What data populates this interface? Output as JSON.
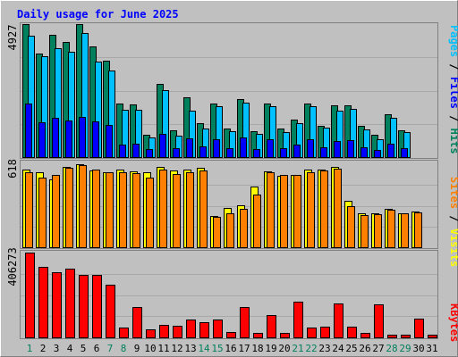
{
  "chart_data": [
    {
      "type": "bar",
      "panel": "top",
      "title": "Daily usage for June 2025",
      "ymax_label": "4927",
      "ymax": 4927,
      "categories": [
        "1",
        "2",
        "3",
        "4",
        "5",
        "6",
        "7",
        "8",
        "9",
        "10",
        "11",
        "12",
        "13",
        "14",
        "15",
        "16",
        "17",
        "18",
        "19",
        "20",
        "21",
        "22",
        "23",
        "24",
        "25",
        "26",
        "27",
        "28",
        "29",
        "30",
        "31"
      ],
      "legend": [
        {
          "text": "Hits",
          "color": "#00805c"
        },
        {
          "text": "/",
          "color": "#000000"
        },
        {
          "text": "Files",
          "color": "#0000ff"
        },
        {
          "text": "/",
          "color": "#000000"
        },
        {
          "text": "Pages",
          "color": "#00c0ff"
        }
      ],
      "series": [
        {
          "name": "Hits",
          "color": "#00805c",
          "values": [
            4927,
            3850,
            4540,
            4250,
            4927,
            4100,
            3560,
            2000,
            1950,
            840,
            2720,
            980,
            2230,
            1270,
            2000,
            1050,
            2160,
            950,
            2000,
            1070,
            1390,
            2000,
            1160,
            1930,
            1930,
            1150,
            820,
            1600,
            1000,
            0,
            0
          ]
        },
        {
          "name": "Files",
          "color": "#0000ff",
          "values": [
            2000,
            1300,
            1450,
            1350,
            1500,
            1320,
            1200,
            470,
            510,
            290,
            850,
            330,
            700,
            400,
            650,
            330,
            720,
            300,
            650,
            330,
            460,
            650,
            360,
            600,
            620,
            350,
            260,
            510,
            330,
            0,
            0
          ]
        },
        {
          "name": "Pages",
          "color": "#00c0ff",
          "values": [
            4490,
            3750,
            4050,
            3900,
            4580,
            3540,
            3220,
            1740,
            1740,
            730,
            2480,
            810,
            1730,
            1070,
            1900,
            970,
            2010,
            870,
            1900,
            930,
            1270,
            1870,
            1080,
            1710,
            1800,
            1020,
            670,
            1460,
            910,
            0,
            0
          ]
        }
      ]
    },
    {
      "type": "bar",
      "panel": "middle",
      "ymax_label": "618",
      "ymax": 618,
      "legend": [
        {
          "text": "Visits",
          "color": "#ffff00"
        },
        {
          "text": "/",
          "color": "#000000"
        },
        {
          "text": "Sites",
          "color": "#ff8000"
        }
      ],
      "series": [
        {
          "name": "Visits",
          "color": "#ffff00",
          "values": [
            580,
            555,
            505,
            600,
            618,
            570,
            558,
            580,
            565,
            555,
            600,
            570,
            580,
            590,
            230,
            290,
            310,
            450,
            565,
            530,
            540,
            580,
            580,
            600,
            345,
            255,
            250,
            285,
            255,
            268,
            0
          ]
        },
        {
          "name": "Sites",
          "color": "#ff8000",
          "values": [
            560,
            520,
            540,
            590,
            612,
            575,
            560,
            560,
            550,
            520,
            575,
            545,
            560,
            570,
            225,
            250,
            285,
            395,
            555,
            540,
            535,
            560,
            570,
            585,
            305,
            240,
            245,
            280,
            250,
            260,
            0
          ]
        }
      ]
    },
    {
      "type": "bar",
      "panel": "bottom",
      "ymax_label": "406273",
      "ymax": 406273,
      "legend": [
        {
          "text": "KBytes",
          "color": "#ff0000"
        }
      ],
      "series": [
        {
          "name": "KBytes",
          "color": "#ff0000",
          "values": [
            406273,
            339000,
            314000,
            329000,
            301000,
            301000,
            252000,
            49000,
            145000,
            40000,
            58000,
            54000,
            86000,
            73000,
            86000,
            26000,
            145000,
            23000,
            107000,
            22000,
            173000,
            49000,
            52000,
            163000,
            53000,
            23000,
            158000,
            12000,
            12000,
            88000,
            13000
          ]
        }
      ]
    }
  ],
  "weekend_days": [
    1,
    7,
    8,
    14,
    15,
    21,
    22,
    28,
    29
  ],
  "colors": {
    "background": "#c0c0c0",
    "plot_area": "#c0c0c0",
    "title": "#0000ff",
    "weekend_label": "#00805c",
    "weekday_label": "#000000",
    "gridline": "#a8a8a8",
    "bar_outline": "#000000"
  }
}
